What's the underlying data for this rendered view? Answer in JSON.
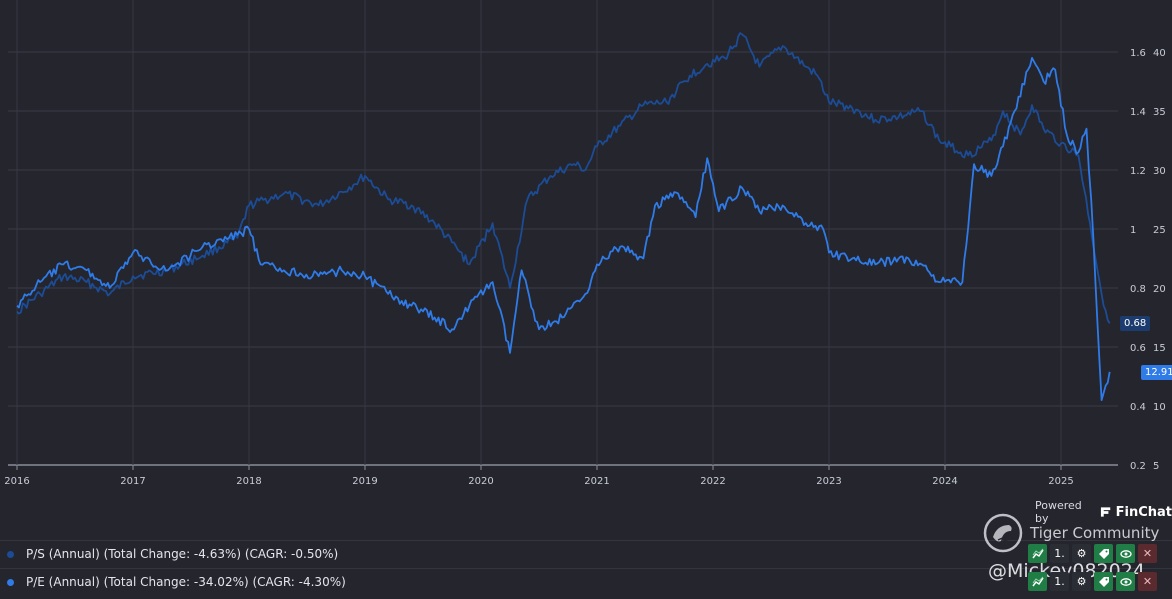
{
  "chart_data": {
    "type": "line",
    "x_axis": {
      "ticks": [
        "2016",
        "2017",
        "2018",
        "2019",
        "2020",
        "2021",
        "2022",
        "2023",
        "2024",
        "2025"
      ]
    },
    "y_axis_left": {
      "ticks": [
        "1.6",
        "1.4",
        "1.2",
        "1",
        "0.8",
        "0.6",
        "0.4",
        "0.2"
      ],
      "range": [
        0.2,
        1.6
      ]
    },
    "y_axis_right": {
      "ticks": [
        "40",
        "35",
        "30",
        "25",
        "20",
        "15",
        "10",
        "5"
      ],
      "range": [
        5,
        40
      ]
    },
    "grid": true,
    "series": [
      {
        "name": "P/S (Annual)",
        "legend": "P/S (Annual) (Total Change: -4.63%) (CAGR: -0.50%)",
        "axis": "left",
        "color": "#1c4c95",
        "last_value": "0.68",
        "points": [
          [
            2016.0,
            0.72
          ],
          [
            2016.2,
            0.78
          ],
          [
            2016.4,
            0.84
          ],
          [
            2016.6,
            0.82
          ],
          [
            2016.8,
            0.78
          ],
          [
            2017.0,
            0.84
          ],
          [
            2017.3,
            0.86
          ],
          [
            2017.6,
            0.91
          ],
          [
            2017.9,
            0.97
          ],
          [
            2018.0,
            1.08
          ],
          [
            2018.3,
            1.12
          ],
          [
            2018.6,
            1.08
          ],
          [
            2018.9,
            1.15
          ],
          [
            2019.0,
            1.18
          ],
          [
            2019.2,
            1.1
          ],
          [
            2019.4,
            1.08
          ],
          [
            2019.6,
            1.02
          ],
          [
            2019.8,
            0.93
          ],
          [
            2019.9,
            0.88
          ],
          [
            2020.1,
            1.02
          ],
          [
            2020.25,
            0.8
          ],
          [
            2020.4,
            1.1
          ],
          [
            2020.6,
            1.18
          ],
          [
            2020.8,
            1.22
          ],
          [
            2020.9,
            1.2
          ],
          [
            2021.0,
            1.28
          ],
          [
            2021.2,
            1.35
          ],
          [
            2021.4,
            1.42
          ],
          [
            2021.6,
            1.43
          ],
          [
            2021.8,
            1.52
          ],
          [
            2021.95,
            1.56
          ],
          [
            2022.1,
            1.58
          ],
          [
            2022.25,
            1.66
          ],
          [
            2022.4,
            1.55
          ],
          [
            2022.6,
            1.62
          ],
          [
            2022.8,
            1.55
          ],
          [
            2022.9,
            1.52
          ],
          [
            2023.0,
            1.43
          ],
          [
            2023.2,
            1.41
          ],
          [
            2023.4,
            1.37
          ],
          [
            2023.6,
            1.38
          ],
          [
            2023.8,
            1.4
          ],
          [
            2023.95,
            1.3
          ],
          [
            2024.05,
            1.28
          ],
          [
            2024.2,
            1.25
          ],
          [
            2024.4,
            1.3
          ],
          [
            2024.5,
            1.4
          ],
          [
            2024.65,
            1.32
          ],
          [
            2024.75,
            1.42
          ],
          [
            2024.85,
            1.34
          ],
          [
            2025.0,
            1.29
          ],
          [
            2025.15,
            1.25
          ],
          [
            2025.25,
            1.02
          ],
          [
            2025.35,
            0.78
          ],
          [
            2025.42,
            0.68
          ]
        ]
      },
      {
        "name": "P/E (Annual)",
        "legend": "P/E (Annual) (Total Change: -34.02%) (CAGR: -4.30%)",
        "axis": "right",
        "color": "#2f7be8",
        "last_value": "12.91",
        "points": [
          [
            2016.0,
            18.5
          ],
          [
            2016.2,
            20.5
          ],
          [
            2016.4,
            22.0
          ],
          [
            2016.6,
            21.5
          ],
          [
            2016.8,
            20.0
          ],
          [
            2017.0,
            23.0
          ],
          [
            2017.3,
            21.5
          ],
          [
            2017.6,
            23.5
          ],
          [
            2017.9,
            24.5
          ],
          [
            2018.0,
            25.0
          ],
          [
            2018.1,
            22.0
          ],
          [
            2018.3,
            21.5
          ],
          [
            2018.6,
            21.0
          ],
          [
            2018.8,
            21.5
          ],
          [
            2019.0,
            21.0
          ],
          [
            2019.2,
            19.5
          ],
          [
            2019.4,
            18.5
          ],
          [
            2019.6,
            17.5
          ],
          [
            2019.75,
            16.5
          ],
          [
            2019.9,
            18.5
          ],
          [
            2020.1,
            20.5
          ],
          [
            2020.25,
            14.5
          ],
          [
            2020.35,
            21.5
          ],
          [
            2020.5,
            16.5
          ],
          [
            2020.7,
            17.5
          ],
          [
            2020.9,
            19.5
          ],
          [
            2021.0,
            22.0
          ],
          [
            2021.2,
            23.5
          ],
          [
            2021.4,
            22.5
          ],
          [
            2021.5,
            27.0
          ],
          [
            2021.7,
            28.0
          ],
          [
            2021.85,
            26.0
          ],
          [
            2021.95,
            31.0
          ],
          [
            2022.05,
            26.5
          ],
          [
            2022.25,
            28.5
          ],
          [
            2022.4,
            26.5
          ],
          [
            2022.6,
            27.0
          ],
          [
            2022.8,
            25.5
          ],
          [
            2022.95,
            25.0
          ],
          [
            2023.0,
            23.0
          ],
          [
            2023.2,
            22.5
          ],
          [
            2023.4,
            22.0
          ],
          [
            2023.6,
            22.5
          ],
          [
            2023.8,
            22.0
          ],
          [
            2023.95,
            20.5
          ],
          [
            2024.15,
            20.5
          ],
          [
            2024.25,
            30.5
          ],
          [
            2024.4,
            29.5
          ],
          [
            2024.5,
            32.0
          ],
          [
            2024.6,
            35.0
          ],
          [
            2024.75,
            39.5
          ],
          [
            2024.85,
            37.5
          ],
          [
            2024.95,
            38.5
          ],
          [
            2025.05,
            33.0
          ],
          [
            2025.15,
            31.5
          ],
          [
            2025.22,
            33.5
          ],
          [
            2025.28,
            24.0
          ],
          [
            2025.35,
            10.5
          ],
          [
            2025.42,
            12.9
          ]
        ]
      }
    ]
  },
  "powered_by": {
    "prefix": "Powered by",
    "brand": "FinChat"
  },
  "watermark": {
    "community": "Tiger Community",
    "user": "@Mickey082024"
  },
  "toolbar_icons": [
    "chart-icon",
    "sort-icon",
    "gear-icon",
    "tag-icon",
    "eye-icon",
    "close-icon"
  ],
  "toolbar_sort_glyph": "1."
}
